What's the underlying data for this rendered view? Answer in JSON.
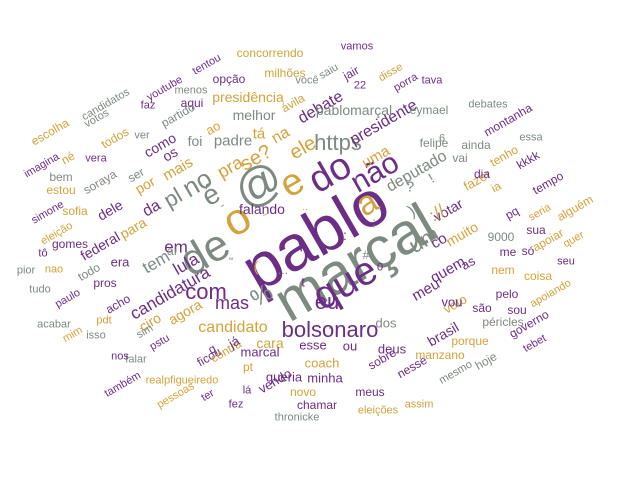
{
  "colors": {
    "purple": "#6b2d86",
    "gold": "#d4a23a",
    "gray": "#7d8a80"
  },
  "words": [
    {
      "text": "pablo",
      "color": "purple"
    },
    {
      "text": "marçal",
      "color": "gray"
    },
    {
      "text": "que",
      "color": "purple"
    },
    {
      "text": "o",
      "color": "gold"
    },
    {
      "text": "@",
      "color": "gray"
    },
    {
      "text": "e",
      "color": "gold"
    },
    {
      "text": "de",
      "color": "gray"
    },
    {
      "text": "a",
      "color": "gold"
    },
    {
      "text": "do",
      "color": "purple"
    },
    {
      "text": "bolsonaro",
      "color": "purple"
    },
    {
      "text": "não",
      "color": "purple"
    },
    {
      "text": "é",
      "color": "gray"
    },
    {
      "text": "no",
      "color": "gray"
    },
    {
      "text": "com",
      "color": "purple"
    },
    {
      "text": "eu",
      "color": "purple"
    },
    {
      "text": "um",
      "color": "gray"
    },
    {
      "text": "https",
      "color": "gray"
    },
    {
      "text": "mas",
      "color": "purple"
    },
    {
      "text": "candidato",
      "color": "gold"
    },
    {
      "text": "candidatura",
      "color": "purple"
    },
    {
      "text": "ele",
      "color": "gold"
    },
    {
      "text": "se?",
      "color": "gold"
    },
    {
      "text": "pra",
      "color": "gold"
    },
    {
      "text": "presidente",
      "color": "purple"
    },
    {
      "text": "deputado",
      "color": "gray"
    },
    {
      "text": "debate",
      "color": "purple"
    },
    {
      "text": "uma",
      "color": "gold"
    },
    {
      "text": "em",
      "color": "purple"
    },
    {
      "text": "tem",
      "color": "gray"
    },
    {
      "text": "lula",
      "color": "purple"
    },
    {
      "text": "meu",
      "color": "purple"
    },
    {
      "text": "quem",
      "color": "purple"
    },
    {
      "text": "co",
      "color": "purple"
    },
    {
      "text": "as",
      "color": "purple"
    },
    {
      "text": "votar",
      "color": "purple"
    },
    {
      "text": "muito",
      "color": "gold"
    },
    {
      "text": "padre",
      "color": "gray"
    },
    {
      "text": "mais",
      "color": "gold"
    },
    {
      "text": "pablomarçal",
      "color": "gray"
    },
    {
      "text": "presidência",
      "color": "gold"
    },
    {
      "text": "melhor",
      "color": "gray"
    },
    {
      "text": "para",
      "color": "gold"
    },
    {
      "text": "da",
      "color": "purple"
    },
    {
      "text": "dele",
      "color": "purple"
    },
    {
      "text": "por",
      "color": "gold"
    },
    {
      "text": "os",
      "color": "purple"
    },
    {
      "text": "como",
      "color": "purple"
    },
    {
      "text": "foi",
      "color": "gray"
    },
    {
      "text": "agora",
      "color": "gold"
    },
    {
      "text": "federal",
      "color": "purple"
    },
    {
      "text": "era",
      "color": "purple"
    },
    {
      "text": "ciro",
      "color": "gold"
    },
    {
      "text": "cara",
      "color": "gold"
    },
    {
      "text": "marcal",
      "color": "purple"
    },
    {
      "text": "esse",
      "color": "purple"
    },
    {
      "text": "ou",
      "color": "purple"
    },
    {
      "text": "coach",
      "color": "gold"
    },
    {
      "text": "queria",
      "color": "purple"
    },
    {
      "text": "minha",
      "color": "purple"
    },
    {
      "text": "deus",
      "color": "purple"
    },
    {
      "text": "dos",
      "color": "gray"
    },
    {
      "text": "brasil",
      "color": "purple"
    },
    {
      "text": "voto",
      "color": "gold"
    },
    {
      "text": "vou",
      "color": "purple"
    },
    {
      "text": "são",
      "color": "purple"
    },
    {
      "text": "sou",
      "color": "purple"
    },
    {
      "text": "pelo",
      "color": "purple"
    },
    {
      "text": "fazer",
      "color": "gold"
    },
    {
      "text": "9000",
      "color": "gray"
    },
    {
      "text": "me",
      "color": "purple"
    },
    {
      "text": "só",
      "color": "purple"
    },
    {
      "text": "nem",
      "color": "gold"
    },
    {
      "text": "coisa",
      "color": "gold"
    },
    {
      "text": "apoiar",
      "color": "gold"
    },
    {
      "text": "sua",
      "color": "purple"
    },
    {
      "text": "quer",
      "color": "gold"
    },
    {
      "text": "seu",
      "color": "purple"
    },
    {
      "text": "alguém",
      "color": "gold"
    },
    {
      "text": "seria",
      "color": "gold"
    },
    {
      "text": "pq",
      "color": "purple"
    },
    {
      "text": "ia",
      "color": "gold"
    },
    {
      "text": "dia",
      "color": "purple"
    },
    {
      "text": "tempo",
      "color": "purple"
    },
    {
      "text": "kkkk",
      "color": "purple"
    },
    {
      "text": "tenho",
      "color": "gold"
    },
    {
      "text": "essa",
      "color": "gray"
    },
    {
      "text": "montanha",
      "color": "purple"
    },
    {
      "text": "debates",
      "color": "gray"
    },
    {
      "text": "ainda",
      "color": "gray"
    },
    {
      "text": "vai",
      "color": "gray"
    },
    {
      "text": "felipe",
      "color": "gray"
    },
    {
      "text": "eymael",
      "color": "gray"
    },
    {
      "text": "tava",
      "color": "purple"
    },
    {
      "text": "porra",
      "color": "purple"
    },
    {
      "text": "22",
      "color": "purple"
    },
    {
      "text": "disse",
      "color": "gold"
    },
    {
      "text": "jair",
      "color": "purple"
    },
    {
      "text": "vamos",
      "color": "purple"
    },
    {
      "text": "saiu",
      "color": "gray"
    },
    {
      "text": "você",
      "color": "gray"
    },
    {
      "text": "ávila",
      "color": "gold"
    },
    {
      "text": "milhões",
      "color": "gold"
    },
    {
      "text": "concorrendo",
      "color": "gold"
    },
    {
      "text": "tentou",
      "color": "purple"
    },
    {
      "text": "opção",
      "color": "purple"
    },
    {
      "text": "menos",
      "color": "gray"
    },
    {
      "text": "aqui",
      "color": "purple"
    },
    {
      "text": "youtube",
      "color": "purple"
    },
    {
      "text": "faz",
      "color": "purple"
    },
    {
      "text": "partido",
      "color": "gray"
    },
    {
      "text": "ao",
      "color": "gold"
    },
    {
      "text": "votos",
      "color": "gray"
    },
    {
      "text": "candidatos",
      "color": "gray"
    },
    {
      "text": "escolha",
      "color": "gold"
    },
    {
      "text": "todos",
      "color": "gold"
    },
    {
      "text": "ver",
      "color": "gray"
    },
    {
      "text": "né",
      "color": "gold"
    },
    {
      "text": "imagina",
      "color": "purple"
    },
    {
      "text": "vera",
      "color": "purple"
    },
    {
      "text": "soraya",
      "color": "gray"
    },
    {
      "text": "ser",
      "color": "gray"
    },
    {
      "text": "bem",
      "color": "gray"
    },
    {
      "text": "estou",
      "color": "gold"
    },
    {
      "text": "simone",
      "color": "purple"
    },
    {
      "text": "sofia",
      "color": "gold"
    },
    {
      "text": "eleição",
      "color": "gold"
    },
    {
      "text": "gomes",
      "color": "purple"
    },
    {
      "text": "aí",
      "color": "gray"
    },
    {
      "text": "pros",
      "color": "purple"
    },
    {
      "text": "tô",
      "color": "purple"
    },
    {
      "text": "nao",
      "color": "gold"
    },
    {
      "text": "todo",
      "color": "gray"
    },
    {
      "text": "pior",
      "color": "gray"
    },
    {
      "text": "tudo",
      "color": "gray"
    },
    {
      "text": "paulo",
      "color": "purple"
    },
    {
      "text": "acho",
      "color": "purple"
    },
    {
      "text": "acabar",
      "color": "gray"
    },
    {
      "text": "mim",
      "color": "gold"
    },
    {
      "text": "pdt",
      "color": "gold"
    },
    {
      "text": "sim",
      "color": "gray"
    },
    {
      "text": "isso",
      "color": "gray"
    },
    {
      "text": "falar",
      "color": "gray"
    },
    {
      "text": "nos",
      "color": "purple"
    },
    {
      "text": "pstu",
      "color": "purple"
    },
    {
      "text": "também",
      "color": "purple"
    },
    {
      "text": "realpfigueiredo",
      "color": "gold"
    },
    {
      "text": "ficou",
      "color": "purple"
    },
    {
      "text": "pessoas",
      "color": "gold"
    },
    {
      "text": "contra",
      "color": "gold"
    },
    {
      "text": "já",
      "color": "purple"
    },
    {
      "text": "pt",
      "color": "gold"
    },
    {
      "text": "lá",
      "color": "purple"
    },
    {
      "text": "ter",
      "color": "purple"
    },
    {
      "text": "fez",
      "color": "purple"
    },
    {
      "text": "vendo",
      "color": "purple"
    },
    {
      "text": "novo",
      "color": "gold"
    },
    {
      "text": "chamar",
      "color": "purple"
    },
    {
      "text": "thronicke",
      "color": "gray"
    },
    {
      "text": "meus",
      "color": "purple"
    },
    {
      "text": "eleições",
      "color": "gold"
    },
    {
      "text": "assim",
      "color": "gold"
    },
    {
      "text": "sobre",
      "color": "purple"
    },
    {
      "text": "nesse",
      "color": "purple"
    },
    {
      "text": "manzano",
      "color": "gold"
    },
    {
      "text": "porque",
      "color": "gold"
    },
    {
      "text": "mesmo",
      "color": "gray"
    },
    {
      "text": "hoje",
      "color": "gray"
    },
    {
      "text": "tebet",
      "color": "purple"
    },
    {
      "text": "governo",
      "color": "purple"
    },
    {
      "text": "apoiando",
      "color": "gold"
    },
    {
      "text": "péricles",
      "color": "gray"
    },
    {
      "text": "falando",
      "color": "purple"
    },
    {
      "text": "na",
      "color": "gold"
    },
    {
      "text": "tá",
      "color": "gold"
    },
    {
      "text": "0",
      "color": "purple"
    },
    {
      "text": "pl",
      "color": "gray"
    },
    {
      "text": "%",
      "color": "gray"
    },
    {
      "text": "(",
      "color": "gold"
    },
    {
      "text": "?",
      "color": "gray"
    },
    {
      "text": "!",
      "color": "gray"
    },
    {
      "text": ")",
      "color": "gray"
    },
    {
      "text": "/",
      "color": "purple"
    },
    {
      "text": ":",
      "color": "purple"
    },
    {
      "text": "://",
      "color": "gold"
    },
    {
      "text": ";",
      "color": "gray"
    },
    {
      "text": "\"",
      "color": "gray"
    },
    {
      "text": "#",
      "color": "gray"
    },
    {
      "text": "-",
      "color": "gray"
    },
    {
      "text": "_",
      "color": "gold"
    },
    {
      "text": "...",
      "color": "gray"
    },
    {
      "text": "q",
      "color": "purple"
    },
    {
      "text": "t",
      "color": "purple"
    },
    {
      "text": "6",
      "color": "gray"
    },
    {
      "text": "'",
      "color": "purple"
    },
    {
      "text": "..",
      "color": "gold"
    }
  ]
}
